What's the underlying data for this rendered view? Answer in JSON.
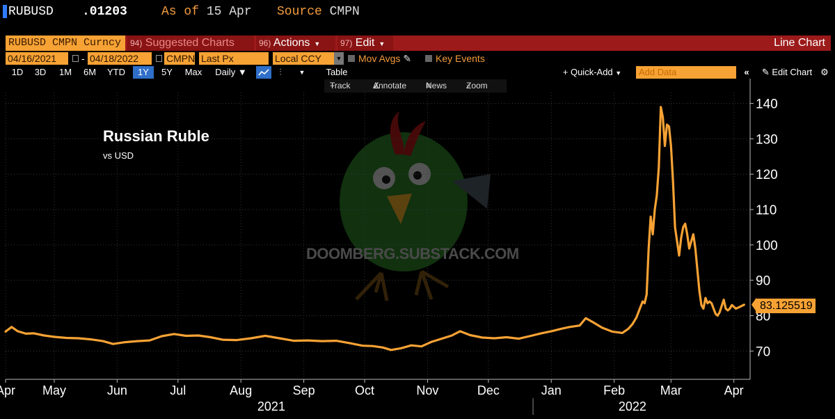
{
  "header": {
    "ticker": "RUBUSD",
    "price": ".01203",
    "as_of_label": "As of",
    "as_of_value": "15 Apr",
    "source_label": "Source",
    "source_value": "CMPN"
  },
  "toolbar": {
    "security_field": "RUBUSD CMPN Curncy",
    "suggested_num": "94)",
    "suggested_label": "Suggested Charts",
    "actions_num": "96)",
    "actions_label": "Actions",
    "edit_num": "97)",
    "edit_label": "Edit",
    "chart_type": "Line Chart"
  },
  "controls": {
    "start_date": "04/16/2021",
    "date_sep": "-",
    "end_date": "04/18/2022",
    "source": "CMPN",
    "field": "Last Px",
    "currency": "Local CCY",
    "mov_avgs": "Mov Avgs",
    "key_events": "Key Events"
  },
  "range": {
    "buttons": [
      "1D",
      "3D",
      "1M",
      "6M",
      "YTD",
      "1Y",
      "5Y",
      "Max"
    ],
    "selected": "1Y",
    "frequency": "Daily",
    "table": "Table",
    "quick_add": "+ Quick-Add",
    "add_data_placeholder": "Add Data",
    "edit_chart": "Edit Chart"
  },
  "subtoolbar": {
    "track": "Track",
    "annotate": "Annotate",
    "news": "News",
    "zoom": "Zoom"
  },
  "watermark": "DOOMBERG.SUBSTACK.COM",
  "colors": {
    "line": "#f7a234",
    "accent_red": "#9c1a1a",
    "selected_blue": "#2f6fc9"
  },
  "chart_data": {
    "type": "line",
    "title": "Russian Ruble",
    "subtitle": "vs USD",
    "ylim": [
      62,
      147
    ],
    "yticks": [
      70,
      80,
      90,
      100,
      110,
      120,
      130,
      140
    ],
    "x_range": [
      "2021-04-16",
      "2022-04-18"
    ],
    "month_ticks": [
      {
        "label": "Apr",
        "date": "2021-04-16"
      },
      {
        "label": "May",
        "date": "2021-05-10"
      },
      {
        "label": "Jun",
        "date": "2021-06-10"
      },
      {
        "label": "Jul",
        "date": "2021-07-10"
      },
      {
        "label": "Aug",
        "date": "2021-08-10"
      },
      {
        "label": "Sep",
        "date": "2021-09-10"
      },
      {
        "label": "Oct",
        "date": "2021-10-10"
      },
      {
        "label": "Nov",
        "date": "2021-11-10"
      },
      {
        "label": "Dec",
        "date": "2021-12-10"
      },
      {
        "label": "Jan",
        "date": "2022-01-10"
      },
      {
        "label": "Feb",
        "date": "2022-02-10"
      },
      {
        "label": "Mar",
        "date": "2022-03-10"
      },
      {
        "label": "Apr",
        "date": "2022-04-10"
      }
    ],
    "year_labels": [
      {
        "label": "2021",
        "date": "2021-08-25"
      },
      {
        "label": "2022",
        "date": "2022-02-19"
      }
    ],
    "year_divider": "2022-01-01",
    "last_value_label": "83.125519",
    "series": [
      {
        "values": [
          [
            "2021-04-16",
            75.5
          ],
          [
            "2021-04-19",
            76.8
          ],
          [
            "2021-04-22",
            75.6
          ],
          [
            "2021-04-26",
            74.9
          ],
          [
            "2021-04-30",
            75.0
          ],
          [
            "2021-05-05",
            74.4
          ],
          [
            "2021-05-10",
            74.0
          ],
          [
            "2021-05-16",
            73.7
          ],
          [
            "2021-05-22",
            73.6
          ],
          [
            "2021-05-28",
            73.3
          ],
          [
            "2021-06-03",
            72.8
          ],
          [
            "2021-06-08",
            72.0
          ],
          [
            "2021-06-14",
            72.5
          ],
          [
            "2021-06-20",
            72.8
          ],
          [
            "2021-06-26",
            73.0
          ],
          [
            "2021-07-02",
            74.2
          ],
          [
            "2021-07-08",
            74.8
          ],
          [
            "2021-07-14",
            74.3
          ],
          [
            "2021-07-20",
            74.4
          ],
          [
            "2021-07-26",
            73.9
          ],
          [
            "2021-08-01",
            73.2
          ],
          [
            "2021-08-08",
            73.1
          ],
          [
            "2021-08-15",
            73.6
          ],
          [
            "2021-08-22",
            74.3
          ],
          [
            "2021-08-29",
            73.6
          ],
          [
            "2021-09-05",
            72.9
          ],
          [
            "2021-09-12",
            73.0
          ],
          [
            "2021-09-19",
            72.8
          ],
          [
            "2021-09-26",
            72.9
          ],
          [
            "2021-10-03",
            72.2
          ],
          [
            "2021-10-09",
            71.5
          ],
          [
            "2021-10-14",
            71.4
          ],
          [
            "2021-10-19",
            71.0
          ],
          [
            "2021-10-23",
            70.3
          ],
          [
            "2021-10-28",
            70.8
          ],
          [
            "2021-11-02",
            71.6
          ],
          [
            "2021-11-07",
            71.3
          ],
          [
            "2021-11-12",
            72.6
          ],
          [
            "2021-11-17",
            73.5
          ],
          [
            "2021-11-22",
            74.4
          ],
          [
            "2021-11-26",
            75.6
          ],
          [
            "2021-12-01",
            74.5
          ],
          [
            "2021-12-07",
            73.8
          ],
          [
            "2021-12-13",
            73.6
          ],
          [
            "2021-12-19",
            73.9
          ],
          [
            "2021-12-25",
            73.5
          ],
          [
            "2021-12-31",
            74.3
          ],
          [
            "2022-01-05",
            75.0
          ],
          [
            "2022-01-10",
            75.6
          ],
          [
            "2022-01-15",
            76.3
          ],
          [
            "2022-01-19",
            76.8
          ],
          [
            "2022-01-24",
            77.2
          ],
          [
            "2022-01-27",
            79.3
          ],
          [
            "2022-01-31",
            78.0
          ],
          [
            "2022-02-04",
            76.6
          ],
          [
            "2022-02-09",
            75.5
          ],
          [
            "2022-02-14",
            75.1
          ],
          [
            "2022-02-17",
            76.3
          ],
          [
            "2022-02-19",
            77.6
          ],
          [
            "2022-02-21",
            79.5
          ],
          [
            "2022-02-22",
            81.0
          ],
          [
            "2022-02-24",
            84.0
          ],
          [
            "2022-02-25",
            83.5
          ],
          [
            "2022-02-26",
            86.0
          ],
          [
            "2022-02-27",
            99.0
          ],
          [
            "2022-02-28",
            108.0
          ],
          [
            "2022-03-01",
            103.0
          ],
          [
            "2022-03-02",
            110.0
          ],
          [
            "2022-03-03",
            114.0
          ],
          [
            "2022-03-04",
            122.0
          ],
          [
            "2022-03-05",
            139.0
          ],
          [
            "2022-03-06",
            136.0
          ],
          [
            "2022-03-07",
            128.0
          ],
          [
            "2022-03-08",
            134.0
          ],
          [
            "2022-03-09",
            133.5
          ],
          [
            "2022-03-10",
            128.0
          ],
          [
            "2022-03-11",
            118.0
          ],
          [
            "2022-03-12",
            105.0
          ],
          [
            "2022-03-14",
            97.0
          ],
          [
            "2022-03-15",
            102.0
          ],
          [
            "2022-03-16",
            105.0
          ],
          [
            "2022-03-17",
            106.0
          ],
          [
            "2022-03-18",
            103.0
          ],
          [
            "2022-03-19",
            99.0
          ],
          [
            "2022-03-20",
            101.0
          ],
          [
            "2022-03-21",
            103.0
          ],
          [
            "2022-03-22",
            99.0
          ],
          [
            "2022-03-23",
            93.0
          ],
          [
            "2022-03-24",
            87.0
          ],
          [
            "2022-03-25",
            83.0
          ],
          [
            "2022-03-26",
            82.0
          ],
          [
            "2022-03-27",
            85.0
          ],
          [
            "2022-03-28",
            83.5
          ],
          [
            "2022-03-29",
            84.0
          ],
          [
            "2022-03-30",
            83.5
          ],
          [
            "2022-03-31",
            82.0
          ],
          [
            "2022-04-01",
            80.5
          ],
          [
            "2022-04-02",
            80.0
          ],
          [
            "2022-04-03",
            81.0
          ],
          [
            "2022-04-05",
            84.5
          ],
          [
            "2022-04-06",
            82.0
          ],
          [
            "2022-04-07",
            81.5
          ],
          [
            "2022-04-08",
            82.0
          ],
          [
            "2022-04-09",
            83.0
          ],
          [
            "2022-04-11",
            82.0
          ],
          [
            "2022-04-13",
            82.5
          ],
          [
            "2022-04-15",
            83.1
          ]
        ]
      }
    ]
  }
}
